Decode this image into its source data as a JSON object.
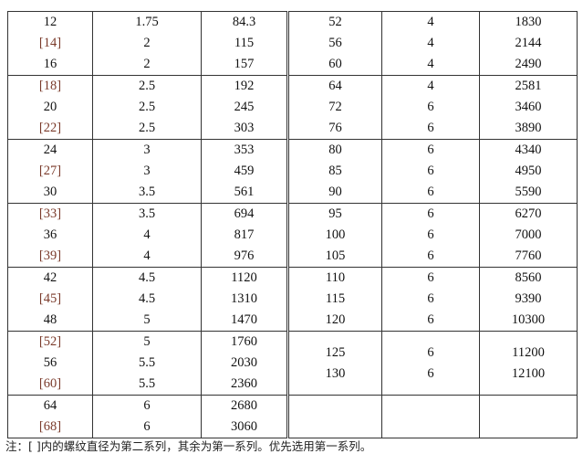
{
  "left": [
    {
      "d": [
        "12",
        "[14]",
        "16"
      ],
      "p": [
        "1.75",
        "2",
        "2"
      ],
      "f": [
        "84.3",
        "115",
        "157"
      ]
    },
    {
      "d": [
        "[18]",
        "20",
        "[22]"
      ],
      "p": [
        "2.5",
        "2.5",
        "2.5"
      ],
      "f": [
        "192",
        "245",
        "303"
      ]
    },
    {
      "d": [
        "24",
        "[27]",
        "30"
      ],
      "p": [
        "3",
        "3",
        "3.5"
      ],
      "f": [
        "353",
        "459",
        "561"
      ]
    },
    {
      "d": [
        "[33]",
        "36",
        "[39]"
      ],
      "p": [
        "3.5",
        "4",
        "4"
      ],
      "f": [
        "694",
        "817",
        "976"
      ]
    },
    {
      "d": [
        "42",
        "[45]",
        "48"
      ],
      "p": [
        "4.5",
        "4.5",
        "5"
      ],
      "f": [
        "1120",
        "1310",
        "1470"
      ]
    },
    {
      "d": [
        "[52]",
        "56",
        "[60]"
      ],
      "p": [
        "5",
        "5.5",
        "5.5"
      ],
      "f": [
        "1760",
        "2030",
        "2360"
      ]
    },
    {
      "d": [
        "64",
        "[68]"
      ],
      "p": [
        "6",
        "6"
      ],
      "f": [
        "2680",
        "3060"
      ]
    }
  ],
  "right": [
    {
      "d": [
        "52",
        "56",
        "60"
      ],
      "p": [
        "4",
        "4",
        "4"
      ],
      "f": [
        "1830",
        "2144",
        "2490"
      ]
    },
    {
      "d": [
        "64",
        "72",
        "76"
      ],
      "p": [
        "4",
        "6",
        "6"
      ],
      "f": [
        "2581",
        "3460",
        "3890"
      ]
    },
    {
      "d": [
        "80",
        "85",
        "90"
      ],
      "p": [
        "6",
        "6",
        "6"
      ],
      "f": [
        "4340",
        "4950",
        "5590"
      ]
    },
    {
      "d": [
        "95",
        "100",
        "105"
      ],
      "p": [
        "6",
        "6",
        "6"
      ],
      "f": [
        "6270",
        "7000",
        "7760"
      ]
    },
    {
      "d": [
        "110",
        "115",
        "120"
      ],
      "p": [
        "6",
        "6",
        "6"
      ],
      "f": [
        "8560",
        "9390",
        "10300"
      ]
    },
    {
      "d": [
        "125",
        "130"
      ],
      "p": [
        "6",
        "6"
      ],
      "f": [
        "11200",
        "12100"
      ]
    },
    {
      "d": [],
      "p": [],
      "f": []
    }
  ],
  "note": "注：[   ]内的螺纹直径为第二系列，其余为第一系列。优先选用第一系列。"
}
